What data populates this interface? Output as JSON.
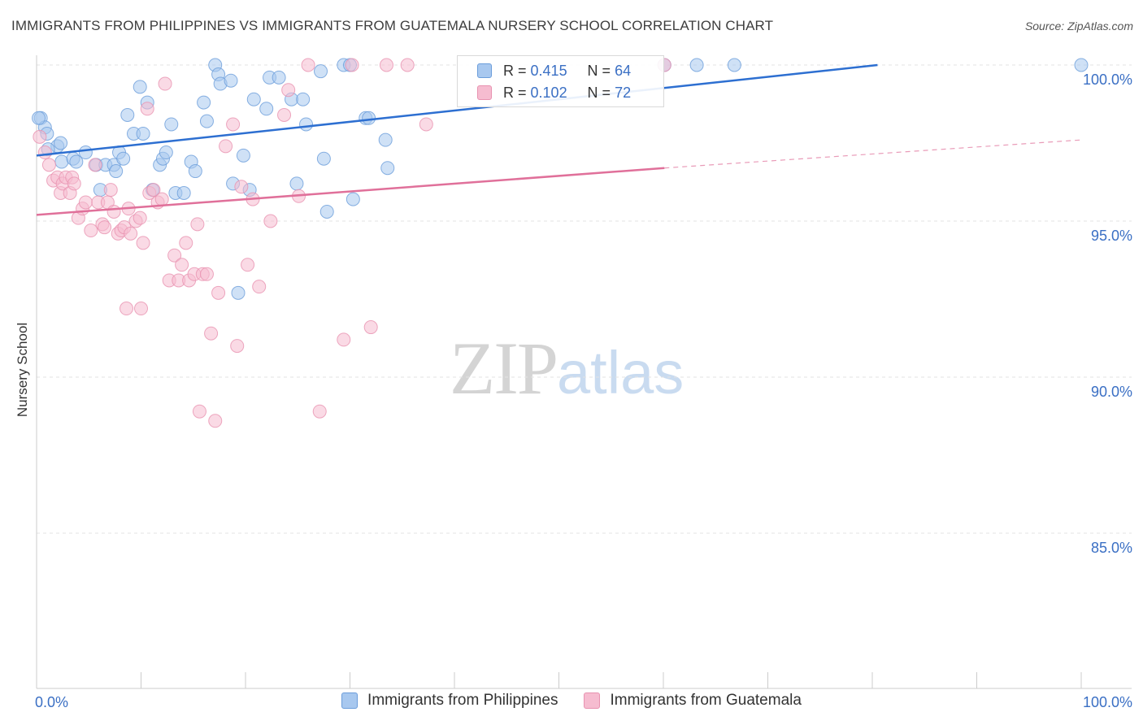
{
  "header": {
    "title": "IMMIGRANTS FROM PHILIPPINES VS IMMIGRANTS FROM GUATEMALA NURSERY SCHOOL CORRELATION CHART",
    "source": "Source: ZipAtlas.com"
  },
  "watermark": {
    "zip": "ZIP",
    "atlas": "atlas"
  },
  "legend": {
    "rows": [
      {
        "r_label": "R =",
        "r_value": "0.415",
        "n_label": "N =",
        "n_value": "64",
        "color": "#a8c8ef",
        "border": "#6b9ddb"
      },
      {
        "r_label": "R =",
        "r_value": "0.102",
        "n_label": "N =",
        "n_value": "72",
        "color": "#f6bcd0",
        "border": "#e892b0"
      }
    ]
  },
  "bottom_legend": {
    "items": [
      {
        "label": "Immigrants from Philippines",
        "color": "#a8c8ef",
        "border": "#6b9ddb"
      },
      {
        "label": "Immigrants from Guatemala",
        "color": "#f6bcd0",
        "border": "#e892b0"
      }
    ]
  },
  "chart_data": {
    "type": "scatter",
    "title": "IMMIGRANTS FROM PHILIPPINES VS IMMIGRANTS FROM GUATEMALA NURSERY SCHOOL CORRELATION CHART",
    "ylabel": "Nursery School",
    "xlabel": "",
    "xlim": [
      0,
      100
    ],
    "ylim": [
      80,
      100.4
    ],
    "x_tick_labels": [
      "0.0%",
      "100.0%"
    ],
    "y_ticks": [
      85,
      90,
      95,
      100
    ],
    "y_tick_labels": [
      "85.0%",
      "90.0%",
      "95.0%",
      "100.0%"
    ],
    "grid": true,
    "legend_position": "top-center",
    "series": [
      {
        "name": "Immigrants from Philippines",
        "color": "#a8c8ef",
        "stroke": "#6b9ddb",
        "trend": {
          "x": [
            0,
            80.5
          ],
          "y": [
            97.1,
            100.0
          ],
          "color": "#2d6fd1"
        },
        "points": [
          [
            0.4,
            98.3
          ],
          [
            0.8,
            98.0
          ],
          [
            1.0,
            97.8
          ],
          [
            2.0,
            97.4
          ],
          [
            2.3,
            97.5
          ],
          [
            2.4,
            96.9
          ],
          [
            3.5,
            97.0
          ],
          [
            4.7,
            97.2
          ],
          [
            5.7,
            96.8
          ],
          [
            6.1,
            96.0
          ],
          [
            6.6,
            96.8
          ],
          [
            7.4,
            96.8
          ],
          [
            7.6,
            96.6
          ],
          [
            7.9,
            97.2
          ],
          [
            8.3,
            97.0
          ],
          [
            8.7,
            98.4
          ],
          [
            9.3,
            97.8
          ],
          [
            9.9,
            99.3
          ],
          [
            10.2,
            97.8
          ],
          [
            10.6,
            98.8
          ],
          [
            11.1,
            96.0
          ],
          [
            11.8,
            96.8
          ],
          [
            12.1,
            97.0
          ],
          [
            12.4,
            97.2
          ],
          [
            12.9,
            98.1
          ],
          [
            13.3,
            95.9
          ],
          [
            14.1,
            95.9
          ],
          [
            14.8,
            96.9
          ],
          [
            15.2,
            96.6
          ],
          [
            16.0,
            98.8
          ],
          [
            16.3,
            98.2
          ],
          [
            17.1,
            100.0
          ],
          [
            17.4,
            99.7
          ],
          [
            17.6,
            99.4
          ],
          [
            18.6,
            99.5
          ],
          [
            18.8,
            96.2
          ],
          [
            19.3,
            92.7
          ],
          [
            19.8,
            97.1
          ],
          [
            20.4,
            96.0
          ],
          [
            20.8,
            98.9
          ],
          [
            22.0,
            98.6
          ],
          [
            22.3,
            99.6
          ],
          [
            23.2,
            99.6
          ],
          [
            24.4,
            98.9
          ],
          [
            24.9,
            96.2
          ],
          [
            25.5,
            98.9
          ],
          [
            25.8,
            98.1
          ],
          [
            27.2,
            99.8
          ],
          [
            27.5,
            97.0
          ],
          [
            27.8,
            95.3
          ],
          [
            29.4,
            100.0
          ],
          [
            30.0,
            100.0
          ],
          [
            30.3,
            95.7
          ],
          [
            31.5,
            98.3
          ],
          [
            31.8,
            98.3
          ],
          [
            33.4,
            97.6
          ],
          [
            33.6,
            96.7
          ],
          [
            60.1,
            100.0
          ],
          [
            63.2,
            100.0
          ],
          [
            66.8,
            100.0
          ],
          [
            100.0,
            100.0
          ],
          [
            0.2,
            98.3
          ],
          [
            1.1,
            97.3
          ],
          [
            3.8,
            96.9
          ]
        ]
      },
      {
        "name": "Immigrants from Guatemala",
        "color": "#f6bcd0",
        "stroke": "#e892b0",
        "trend": {
          "x": [
            0,
            60.1
          ],
          "y": [
            95.2,
            96.7
          ],
          "color": "#e0709a",
          "dashed_to": [
            100,
            97.6
          ]
        },
        "points": [
          [
            0.3,
            97.7
          ],
          [
            0.8,
            97.2
          ],
          [
            1.2,
            96.8
          ],
          [
            1.6,
            96.3
          ],
          [
            2.0,
            96.4
          ],
          [
            2.3,
            95.9
          ],
          [
            2.5,
            96.2
          ],
          [
            2.8,
            96.4
          ],
          [
            3.2,
            95.9
          ],
          [
            3.4,
            96.4
          ],
          [
            3.6,
            96.2
          ],
          [
            4.0,
            95.1
          ],
          [
            4.4,
            95.4
          ],
          [
            4.7,
            95.6
          ],
          [
            5.2,
            94.7
          ],
          [
            5.6,
            96.8
          ],
          [
            5.9,
            95.6
          ],
          [
            6.3,
            94.9
          ],
          [
            6.5,
            94.8
          ],
          [
            6.8,
            95.6
          ],
          [
            7.1,
            96.0
          ],
          [
            7.4,
            95.3
          ],
          [
            7.8,
            94.6
          ],
          [
            8.1,
            94.7
          ],
          [
            8.4,
            94.8
          ],
          [
            8.8,
            95.4
          ],
          [
            9.0,
            94.6
          ],
          [
            9.5,
            95.0
          ],
          [
            9.9,
            95.1
          ],
          [
            10.2,
            94.3
          ],
          [
            10.6,
            98.6
          ],
          [
            10.8,
            95.9
          ],
          [
            11.2,
            96.0
          ],
          [
            11.6,
            95.6
          ],
          [
            12.0,
            95.7
          ],
          [
            12.3,
            99.4
          ],
          [
            12.7,
            93.1
          ],
          [
            13.2,
            93.9
          ],
          [
            13.6,
            93.1
          ],
          [
            13.9,
            93.6
          ],
          [
            14.3,
            94.3
          ],
          [
            14.6,
            93.1
          ],
          [
            15.1,
            93.3
          ],
          [
            15.4,
            94.9
          ],
          [
            15.9,
            93.3
          ],
          [
            16.3,
            93.3
          ],
          [
            16.7,
            91.4
          ],
          [
            17.4,
            92.7
          ],
          [
            18.1,
            97.4
          ],
          [
            18.8,
            98.1
          ],
          [
            19.2,
            91.0
          ],
          [
            19.6,
            96.1
          ],
          [
            20.2,
            93.6
          ],
          [
            20.7,
            95.7
          ],
          [
            21.3,
            92.9
          ],
          [
            22.4,
            95.0
          ],
          [
            23.7,
            98.4
          ],
          [
            24.1,
            99.2
          ],
          [
            25.1,
            95.8
          ],
          [
            26.0,
            100.0
          ],
          [
            27.1,
            88.9
          ],
          [
            29.4,
            91.2
          ],
          [
            30.2,
            100.0
          ],
          [
            32.0,
            91.6
          ],
          [
            33.5,
            100.0
          ],
          [
            35.5,
            100.0
          ],
          [
            37.3,
            98.1
          ],
          [
            60.1,
            100.0
          ],
          [
            8.6,
            92.2
          ],
          [
            10.0,
            92.2
          ],
          [
            15.6,
            88.9
          ],
          [
            17.1,
            88.6
          ]
        ]
      }
    ]
  }
}
